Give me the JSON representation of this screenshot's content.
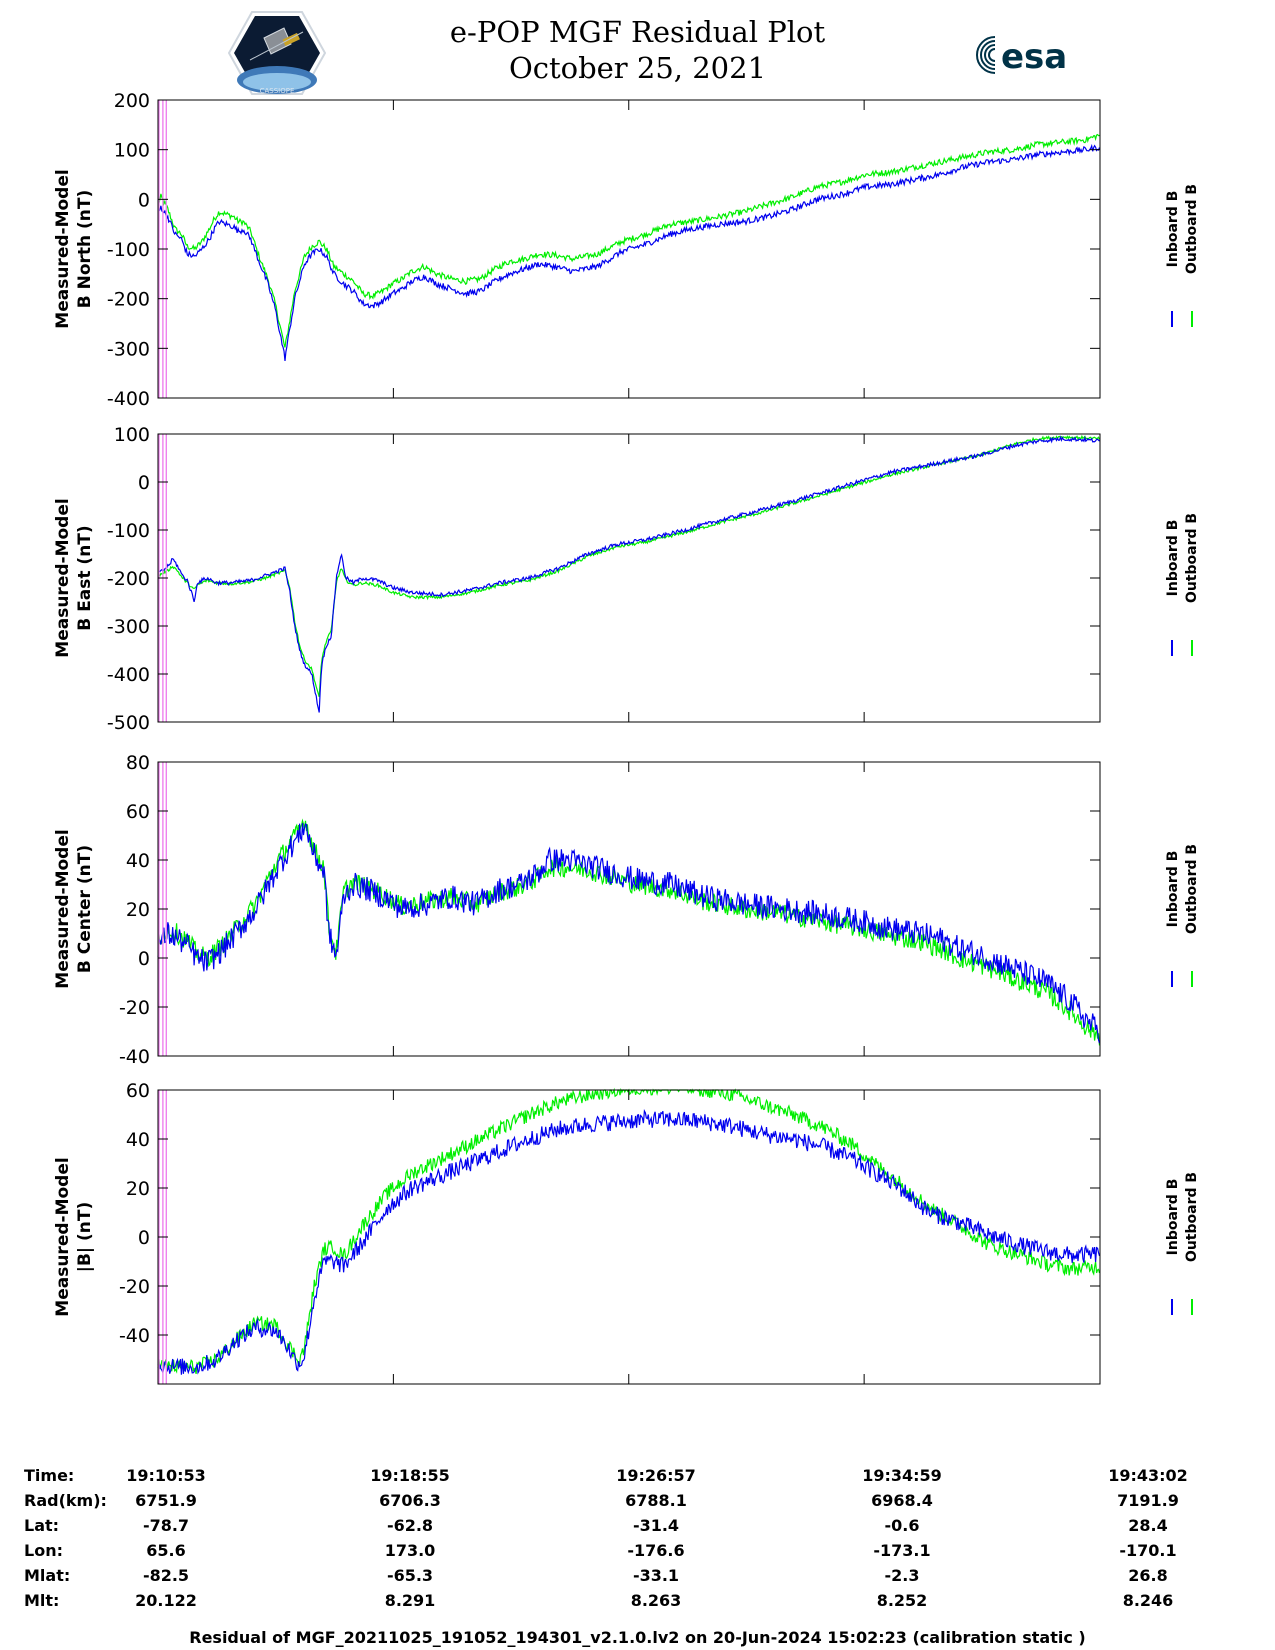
{
  "header": {
    "title_line1": "e-POP MGF Residual Plot",
    "title_line2": "October 25, 2021",
    "left_logo": "cassiope-mission-patch",
    "left_logo_text": "CASSIOPE",
    "right_logo": "esa-logo",
    "right_logo_text": "esa"
  },
  "colors": {
    "inboard": "#0000ee",
    "outboard": "#00ee00",
    "marker": "#ee82ee",
    "axis": "#000000"
  },
  "chart_data": [
    {
      "type": "line",
      "name": "b-north",
      "ylabel_line1": "Measured-Model",
      "ylabel_line2": "B North (nT)",
      "ylim": [
        -400,
        200
      ],
      "yticks": [
        -400,
        -300,
        -200,
        -100,
        0,
        100,
        200
      ],
      "x": [
        0,
        6,
        12,
        20,
        35,
        48,
        60,
        75,
        90,
        105,
        115,
        125,
        140,
        155,
        165,
        175,
        190,
        205,
        225,
        240,
        260,
        280,
        300,
        315,
        330,
        345,
        360,
        380,
        400,
        420,
        440,
        460,
        480,
        500,
        520,
        545,
        570,
        600,
        630,
        660,
        690,
        720,
        750,
        780,
        810,
        850,
        900,
        950,
        1000,
        1050,
        1090,
        1150,
        1200,
        1250,
        1300,
        1350,
        1400,
        1450,
        1500,
        1550,
        1600,
        1650,
        1700,
        1750,
        1800,
        1850,
        1900,
        1929
      ],
      "series": [
        {
          "name": "Inboard B",
          "noise": 6,
          "values": [
            -30,
            -15,
            -25,
            -35,
            -70,
            -80,
            -110,
            -115,
            -100,
            -80,
            -60,
            -45,
            -50,
            -55,
            -65,
            -60,
            -80,
            -120,
            -170,
            -220,
            -320,
            -200,
            -130,
            -110,
            -100,
            -115,
            -150,
            -170,
            -185,
            -210,
            -215,
            -205,
            -190,
            -180,
            -165,
            -155,
            -170,
            -180,
            -190,
            -185,
            -165,
            -150,
            -140,
            -130,
            -135,
            -145,
            -135,
            -105,
            -90,
            -70,
            -60,
            -50,
            -45,
            -35,
            -20,
            0,
            10,
            25,
            30,
            40,
            50,
            65,
            75,
            80,
            90,
            95,
            100,
            105
          ]
        },
        {
          "name": "Outboard B",
          "noise": 6,
          "values": [
            -10,
            5,
            -5,
            -20,
            -60,
            -70,
            -95,
            -100,
            -85,
            -60,
            -40,
            -25,
            -30,
            -35,
            -45,
            -45,
            -65,
            -110,
            -160,
            -210,
            -300,
            -185,
            -115,
            -95,
            -85,
            -100,
            -135,
            -150,
            -165,
            -190,
            -195,
            -185,
            -170,
            -160,
            -145,
            -135,
            -150,
            -160,
            -165,
            -160,
            -140,
            -125,
            -120,
            -110,
            -112,
            -120,
            -110,
            -85,
            -70,
            -50,
            -45,
            -35,
            -25,
            -10,
            5,
            25,
            35,
            50,
            55,
            65,
            75,
            85,
            95,
            100,
            110,
            115,
            120,
            130
          ]
        }
      ]
    },
    {
      "type": "line",
      "name": "b-east",
      "ylabel_line1": "Measured-Model",
      "ylabel_line2": "B East (nT)",
      "ylim": [
        -500,
        100
      ],
      "yticks": [
        -500,
        -400,
        -300,
        -200,
        -100,
        0,
        100
      ],
      "x": [
        0,
        10,
        20,
        25,
        30,
        40,
        50,
        60,
        75,
        80,
        90,
        100,
        120,
        150,
        190,
        220,
        260,
        270,
        280,
        290,
        300,
        315,
        330,
        335,
        345,
        355,
        365,
        375,
        385,
        400,
        420,
        450,
        480,
        520,
        580,
        640,
        700,
        760,
        820,
        880,
        940,
        1000,
        1080,
        1150,
        1230,
        1300,
        1400,
        1500,
        1600,
        1680,
        1750,
        1800,
        1850,
        1900,
        1929
      ],
      "series": [
        {
          "name": "Inboard B",
          "noise": 4,
          "values": [
            -190,
            -185,
            -175,
            -170,
            -160,
            -175,
            -195,
            -205,
            -250,
            -210,
            -205,
            -200,
            -210,
            -210,
            -205,
            -195,
            -180,
            -230,
            -300,
            -350,
            -380,
            -400,
            -480,
            -380,
            -340,
            -320,
            -200,
            -150,
            -200,
            -210,
            -200,
            -205,
            -220,
            -230,
            -235,
            -225,
            -210,
            -200,
            -180,
            -150,
            -130,
            -120,
            -100,
            -80,
            -60,
            -40,
            -10,
            20,
            40,
            55,
            75,
            85,
            90,
            88,
            85
          ]
        },
        {
          "name": "Outboard B",
          "noise": 3,
          "values": [
            -195,
            -190,
            -185,
            -180,
            -175,
            -185,
            -200,
            -210,
            -225,
            -215,
            -210,
            -205,
            -210,
            -212,
            -208,
            -200,
            -185,
            -220,
            -290,
            -340,
            -370,
            -390,
            -450,
            -370,
            -330,
            -310,
            -210,
            -180,
            -205,
            -215,
            -210,
            -215,
            -230,
            -240,
            -240,
            -230,
            -215,
            -205,
            -185,
            -155,
            -135,
            -125,
            -105,
            -85,
            -65,
            -45,
            -15,
            15,
            38,
            55,
            78,
            90,
            94,
            92,
            90
          ]
        }
      ]
    },
    {
      "type": "line",
      "name": "b-center",
      "ylabel_line1": "Measured-Model",
      "ylabel_line2": "B Center (nT)",
      "ylim": [
        -40,
        80
      ],
      "yticks": [
        -40,
        -20,
        0,
        20,
        40,
        60,
        80
      ],
      "x": [
        0,
        20,
        40,
        60,
        80,
        100,
        130,
        160,
        200,
        240,
        270,
        290,
        300,
        320,
        340,
        350,
        365,
        380,
        400,
        430,
        460,
        500,
        550,
        600,
        650,
        700,
        740,
        780,
        800,
        840,
        880,
        930,
        980,
        1050,
        1120,
        1200,
        1280,
        1360,
        1440,
        1500,
        1560,
        1600,
        1640,
        1700,
        1760,
        1820,
        1870,
        1900,
        1929
      ],
      "series": [
        {
          "name": "Inboard B",
          "noise": 5,
          "values": [
            5,
            10,
            8,
            5,
            0,
            -2,
            3,
            10,
            20,
            35,
            45,
            50,
            55,
            42,
            35,
            10,
            0,
            25,
            30,
            28,
            25,
            20,
            22,
            25,
            22,
            28,
            30,
            35,
            40,
            40,
            38,
            35,
            32,
            30,
            25,
            22,
            20,
            18,
            15,
            12,
            10,
            8,
            4,
            0,
            -5,
            -10,
            -18,
            -25,
            -30
          ]
        },
        {
          "name": "Outboard B",
          "noise": 4,
          "values": [
            8,
            12,
            10,
            7,
            2,
            0,
            5,
            12,
            22,
            38,
            47,
            52,
            57,
            44,
            37,
            12,
            2,
            27,
            31,
            29,
            26,
            21,
            23,
            25,
            22,
            27,
            29,
            33,
            37,
            37,
            36,
            33,
            30,
            28,
            23,
            20,
            18,
            15,
            12,
            9,
            7,
            4,
            0,
            -4,
            -9,
            -14,
            -22,
            -28,
            -32
          ]
        }
      ]
    },
    {
      "type": "line",
      "name": "b-total",
      "ylabel_line1": "Measured-Model",
      "ylabel_line2": "|B| (nT)",
      "ylim": [
        -60,
        60
      ],
      "yticks": [
        -40,
        -20,
        0,
        20,
        40,
        60
      ],
      "x": [
        0,
        40,
        80,
        120,
        160,
        200,
        240,
        260,
        280,
        290,
        300,
        320,
        340,
        360,
        380,
        420,
        470,
        520,
        580,
        640,
        700,
        760,
        820,
        880,
        940,
        1000,
        1060,
        1120,
        1180,
        1240,
        1300,
        1360,
        1420,
        1480,
        1520,
        1580,
        1640,
        1700,
        1760,
        1820,
        1870,
        1929
      ],
      "series": [
        {
          "name": "Inboard B",
          "noise": 3.5,
          "values": [
            -52,
            -53,
            -53,
            -50,
            -42,
            -37,
            -38,
            -43,
            -50,
            -52,
            -48,
            -25,
            -10,
            -10,
            -12,
            -2,
            12,
            20,
            25,
            30,
            35,
            40,
            44,
            46,
            47,
            48,
            48,
            47,
            45,
            42,
            40,
            37,
            32,
            25,
            20,
            10,
            6,
            1,
            -3,
            -6,
            -7.5,
            -7
          ]
        },
        {
          "name": "Outboard B",
          "noise": 3,
          "values": [
            -52,
            -53,
            -53,
            -50,
            -42,
            -35,
            -36,
            -42,
            -48,
            -50,
            -45,
            -20,
            -5,
            -4,
            -8,
            5,
            18,
            26,
            32,
            38,
            44,
            50,
            55,
            58,
            60,
            61,
            61,
            60,
            58,
            54,
            50,
            45,
            38,
            28,
            22,
            12,
            5,
            -3,
            -7,
            -11,
            -13,
            -12
          ]
        }
      ]
    }
  ],
  "x_axis": {
    "ticks": [
      0,
      482,
      964,
      1446,
      1929
    ],
    "markers": [
      2,
      10,
      17
    ]
  },
  "legend": {
    "inboard_label": "Inboard B",
    "outboard_label": "Outboard B"
  },
  "info_table": {
    "rows": [
      {
        "label": "Time:",
        "values": [
          "19:10:53",
          "19:18:55",
          "19:26:57",
          "19:34:59",
          "19:43:02"
        ]
      },
      {
        "label": "Rad(km):",
        "values": [
          "6751.9",
          "6706.3",
          "6788.1",
          "6968.4",
          "7191.9"
        ]
      },
      {
        "label": "Lat:",
        "values": [
          "-78.7",
          "-62.8",
          "-31.4",
          "-0.6",
          "28.4"
        ]
      },
      {
        "label": "Lon:",
        "values": [
          "65.6",
          "173.0",
          "-176.6",
          "-173.1",
          "-170.1"
        ]
      },
      {
        "label": "Mlat:",
        "values": [
          "-82.5",
          "-65.3",
          "-33.1",
          "-2.3",
          "26.8"
        ]
      },
      {
        "label": "Mlt:",
        "values": [
          "20.122",
          "8.291",
          "8.263",
          "8.252",
          "8.246"
        ]
      }
    ]
  },
  "footer": {
    "text": "Residual of MGF_20211025_191052_194301_v2.1.0.lv2 on 20-Jun-2024 15:02:23 (calibration static )"
  }
}
